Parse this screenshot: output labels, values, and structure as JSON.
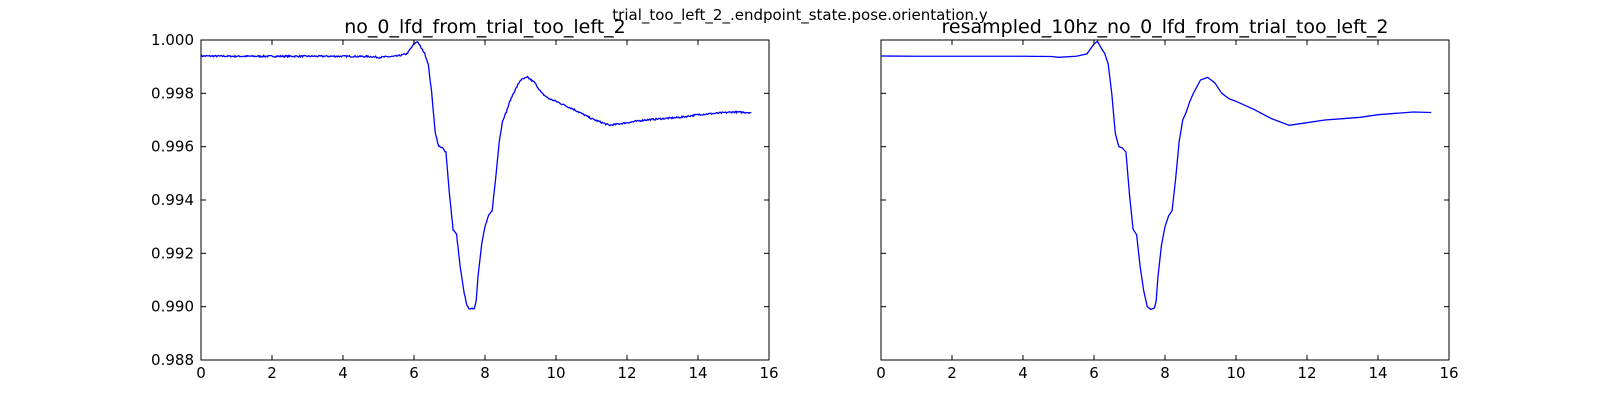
{
  "figure": {
    "suptitle": "trial_too_left_2_.endpoint_state.pose.orientation.y"
  },
  "chart_data": [
    {
      "type": "line",
      "title": "no_0_lfd_from_trial_too_left_2",
      "xlabel": "",
      "ylabel": "",
      "xlim": [
        0,
        16
      ],
      "ylim": [
        0.988,
        1.0
      ],
      "xticks": [
        0,
        2,
        4,
        6,
        8,
        10,
        12,
        14,
        16
      ],
      "yticks": [
        0.988,
        0.99,
        0.992,
        0.994,
        0.996,
        0.998,
        1.0
      ],
      "ytick_labels": [
        "0.988",
        "0.990",
        "0.992",
        "0.994",
        "0.996",
        "0.998",
        "1.000"
      ],
      "grid": false,
      "legend": "none",
      "line_color": "#0000ff",
      "noisy": true,
      "series": [
        {
          "x": [
            0,
            1,
            2,
            3,
            4,
            4.8,
            5.0,
            5.5,
            5.8,
            6.0,
            6.1,
            6.2,
            6.3,
            6.4,
            6.5,
            6.6,
            6.7,
            6.8,
            6.9,
            7.0,
            7.1,
            7.2,
            7.3,
            7.4,
            7.5,
            7.6,
            7.7,
            7.75,
            7.8,
            7.9,
            8.0,
            8.1,
            8.2,
            8.3,
            8.4,
            8.5,
            8.6,
            8.7,
            8.8,
            9.0,
            9.2,
            9.4,
            9.6,
            9.8,
            10.0,
            10.5,
            11.0,
            11.5,
            12.0,
            12.5,
            13.0,
            13.5,
            14.0,
            14.5,
            15.0,
            15.5
          ],
          "y": [
            0.9994,
            0.99939,
            0.99939,
            0.99939,
            0.99939,
            0.99938,
            0.99935,
            0.99939,
            0.99948,
            0.99985,
            0.99995,
            0.9997,
            0.9995,
            0.9991,
            0.998,
            0.9965,
            0.996,
            0.99595,
            0.9958,
            0.9942,
            0.9929,
            0.9927,
            0.9915,
            0.9906,
            0.99,
            0.9899,
            0.98995,
            0.9902,
            0.9911,
            0.9923,
            0.993,
            0.9934,
            0.9936,
            0.9948,
            0.9962,
            0.997,
            0.9973,
            0.9977,
            0.998,
            0.9985,
            0.9986,
            0.9984,
            0.998,
            0.9978,
            0.9977,
            0.9974,
            0.99705,
            0.9968,
            0.9969,
            0.997,
            0.99705,
            0.9971,
            0.9972,
            0.99725,
            0.9973,
            0.99728
          ]
        }
      ]
    },
    {
      "type": "line",
      "title": "resampled_10hz_no_0_lfd_from_trial_too_left_2",
      "xlabel": "",
      "ylabel": "",
      "xlim": [
        0,
        16
      ],
      "ylim": [
        0.988,
        1.0
      ],
      "xticks": [
        0,
        2,
        4,
        6,
        8,
        10,
        12,
        14,
        16
      ],
      "yticks": [
        0.988,
        0.99,
        0.992,
        0.994,
        0.996,
        0.998,
        1.0
      ],
      "ytick_labels": [],
      "grid": false,
      "legend": "none",
      "line_color": "#0000ff",
      "noisy": false,
      "series": [
        {
          "x": [
            0,
            1,
            2,
            3,
            4,
            4.8,
            5.0,
            5.5,
            5.8,
            6.0,
            6.1,
            6.2,
            6.3,
            6.4,
            6.5,
            6.6,
            6.7,
            6.8,
            6.9,
            7.0,
            7.1,
            7.2,
            7.3,
            7.4,
            7.5,
            7.6,
            7.7,
            7.75,
            7.8,
            7.9,
            8.0,
            8.1,
            8.2,
            8.3,
            8.4,
            8.5,
            8.6,
            8.7,
            8.8,
            9.0,
            9.2,
            9.4,
            9.6,
            9.8,
            10.0,
            10.5,
            11.0,
            11.5,
            12.0,
            12.5,
            13.0,
            13.5,
            14.0,
            14.5,
            15.0,
            15.5
          ],
          "y": [
            0.9994,
            0.99939,
            0.99939,
            0.99939,
            0.99939,
            0.99938,
            0.99935,
            0.99939,
            0.99948,
            0.99985,
            0.99995,
            0.9997,
            0.9995,
            0.9991,
            0.998,
            0.9965,
            0.996,
            0.99595,
            0.9958,
            0.9942,
            0.9929,
            0.9927,
            0.9915,
            0.9906,
            0.99,
            0.9899,
            0.98995,
            0.9902,
            0.9911,
            0.9923,
            0.993,
            0.9934,
            0.9936,
            0.9948,
            0.9962,
            0.997,
            0.9973,
            0.9977,
            0.998,
            0.9985,
            0.9986,
            0.9984,
            0.998,
            0.9978,
            0.9977,
            0.9974,
            0.99705,
            0.9968,
            0.9969,
            0.997,
            0.99705,
            0.9971,
            0.9972,
            0.99725,
            0.9973,
            0.99728
          ]
        }
      ]
    }
  ]
}
